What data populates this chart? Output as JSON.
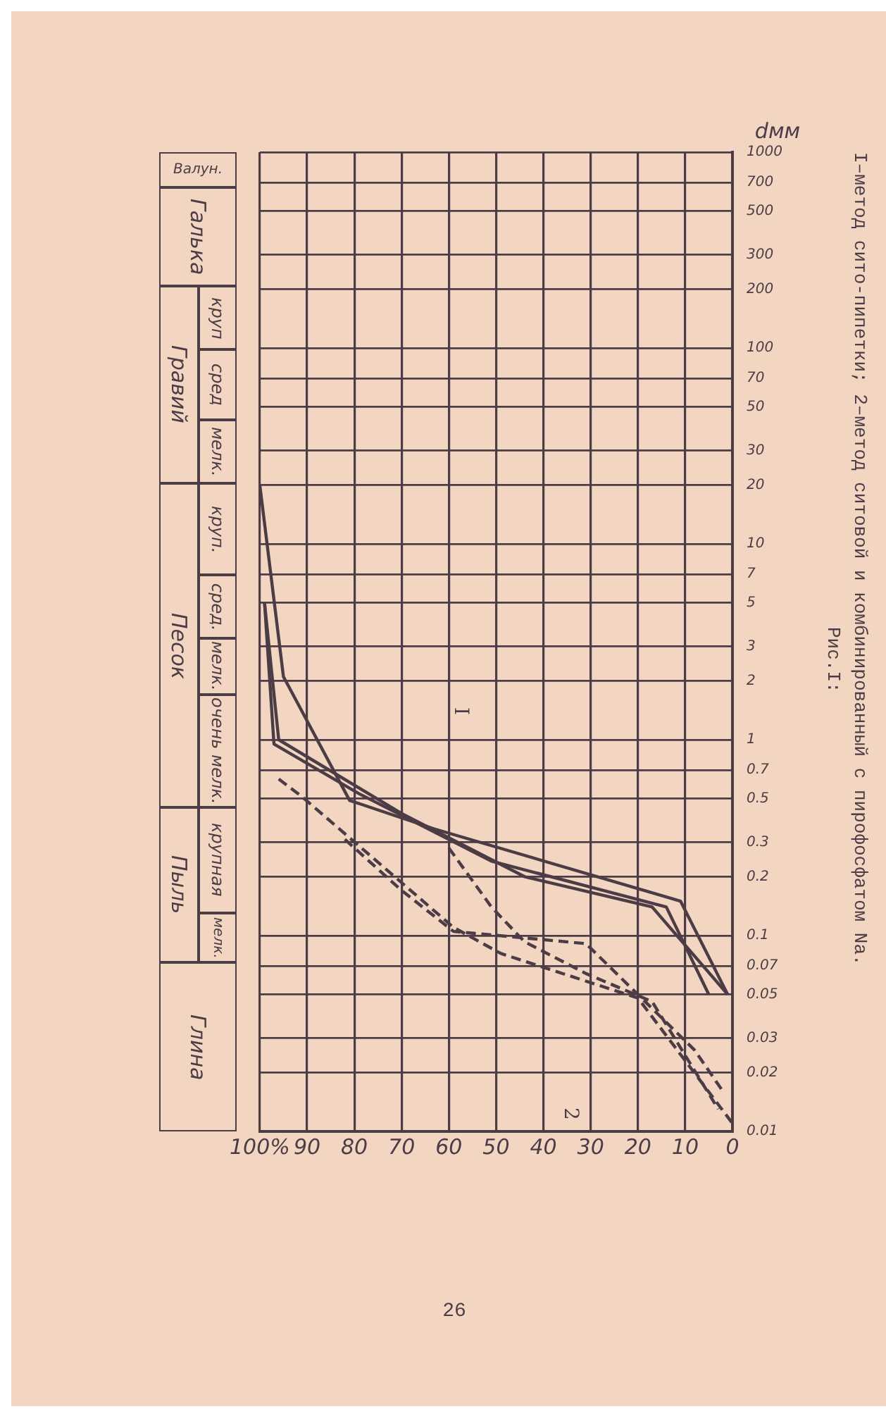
{
  "chart_data": {
    "type": "line",
    "title": "Рис.I:",
    "subtitle": "I–метод сито-пипетки; 2–метод ситовой и комбинированный с пирофосфатом Na.",
    "ylabel": "dмм",
    "xlim": [
      100,
      0
    ],
    "xticks": [
      {
        "value": 100,
        "label": "100%"
      },
      90,
      80,
      70,
      60,
      50,
      40,
      30,
      20,
      10,
      0
    ],
    "ylim": [
      0.01,
      1000
    ],
    "yticks": [
      1000,
      700,
      500,
      300,
      200,
      100,
      70,
      50,
      30,
      20,
      10,
      7,
      5,
      3,
      2,
      1,
      0.7,
      0.5,
      0.3,
      0.2,
      0.1,
      0.07,
      0.05,
      0.03,
      0.02,
      0.01
    ],
    "log": "y",
    "grid": true,
    "series": [
      {
        "color": "#4b3c46",
        "line_style": "solid",
        "x": [
          100,
          95,
          81,
          63,
          11,
          1
        ],
        "values": [
          20,
          2.1,
          0.49,
          0.35,
          0.15,
          0.05
        ]
      },
      {
        "color": "#4b3c46",
        "line_style": "solid",
        "x": [
          99,
          97,
          79,
          51,
          14,
          5
        ],
        "values": [
          5,
          0.95,
          0.53,
          0.24,
          0.14,
          0.05
        ]
      },
      {
        "color": "#4b3c46",
        "line_style": "solid",
        "x": [
          99,
          96,
          70,
          44,
          17,
          1
        ],
        "values": [
          5,
          1,
          0.42,
          0.2,
          0.14,
          0.05
        ]
      },
      {
        "color": "#4b3c46",
        "line_style": "dashed",
        "x": [
          96,
          91,
          59,
          49,
          20,
          0
        ],
        "values": [
          0.63,
          0.51,
          0.11,
          0.081,
          0.048,
          0.011
        ]
      },
      {
        "color": "#4b3c46",
        "line_style": "dashed",
        "x": [
          82,
          70,
          59,
          31,
          8,
          2
        ],
        "values": [
          0.31,
          0.17,
          0.105,
          0.091,
          0.026,
          0.016
        ]
      },
      {
        "color": "#4b3c46",
        "line_style": "dashed",
        "x": [
          60,
          51,
          44,
          31,
          17,
          3
        ],
        "values": [
          0.28,
          0.14,
          0.093,
          0.064,
          0.046,
          0.013
        ]
      }
    ],
    "annotations": [
      "Валун.",
      "Галька",
      "Гравий",
      "круп",
      "сред",
      "мелк.",
      "Песок",
      "круп.",
      "сред.",
      "мелк.",
      "очень мелк.",
      "Пыль",
      "крупная",
      "мелк.",
      "Глина",
      "I",
      "2",
      "26"
    ]
  }
}
